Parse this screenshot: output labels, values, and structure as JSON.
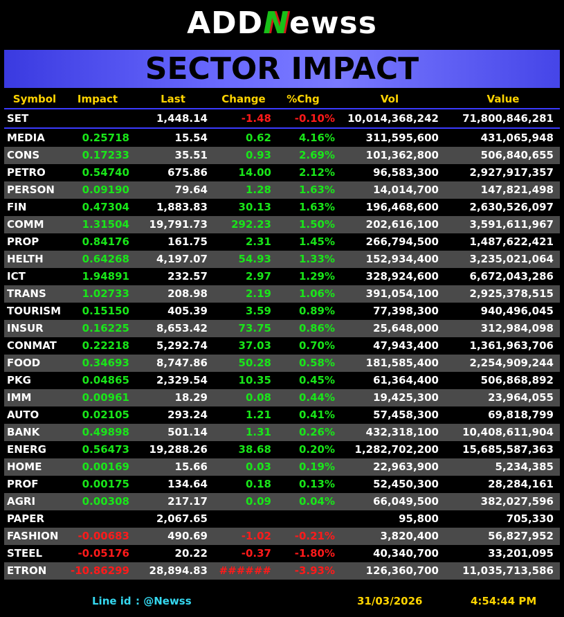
{
  "logo": {
    "left": "ADD",
    "mark": "N",
    "right": "ewss"
  },
  "title": "SECTOR IMPACT",
  "columns": [
    "Symbol",
    "Impact",
    "Last",
    "Change",
    "%Chg",
    "Vol",
    "Value"
  ],
  "index_row": [
    "SET",
    null,
    "1,448.14",
    "-1.48",
    "-0.10%",
    "10,014,368,242",
    "71,800,846,281"
  ],
  "rows": [
    [
      "MEDIA",
      "0.25718",
      "15.54",
      "0.62",
      "4.16%",
      "311,595,600",
      "431,065,948"
    ],
    [
      "CONS",
      "0.17233",
      "35.51",
      "0.93",
      "2.69%",
      "101,362,800",
      "506,840,655"
    ],
    [
      "PETRO",
      "0.54740",
      "675.86",
      "14.00",
      "2.12%",
      "96,583,300",
      "2,927,917,357"
    ],
    [
      "PERSON",
      "0.09190",
      "79.64",
      "1.28",
      "1.63%",
      "14,014,700",
      "147,821,498"
    ],
    [
      "FIN",
      "0.47304",
      "1,883.83",
      "30.13",
      "1.63%",
      "196,468,600",
      "2,630,526,097"
    ],
    [
      "COMM",
      "1.31504",
      "19,791.73",
      "292.23",
      "1.50%",
      "202,616,100",
      "3,591,611,967"
    ],
    [
      "PROP",
      "0.84176",
      "161.75",
      "2.31",
      "1.45%",
      "266,794,500",
      "1,487,622,421"
    ],
    [
      "HELTH",
      "0.64268",
      "4,197.07",
      "54.93",
      "1.33%",
      "152,934,400",
      "3,235,021,064"
    ],
    [
      "ICT",
      "1.94891",
      "232.57",
      "2.97",
      "1.29%",
      "328,924,600",
      "6,672,043,286"
    ],
    [
      "TRANS",
      "1.02733",
      "208.98",
      "2.19",
      "1.06%",
      "391,054,100",
      "2,925,378,515"
    ],
    [
      "TOURISM",
      "0.15150",
      "405.39",
      "3.59",
      "0.89%",
      "77,398,300",
      "940,496,045"
    ],
    [
      "INSUR",
      "0.16225",
      "8,653.42",
      "73.75",
      "0.86%",
      "25,648,000",
      "312,984,098"
    ],
    [
      "CONMAT",
      "0.22218",
      "5,292.74",
      "37.03",
      "0.70%",
      "47,943,400",
      "1,361,963,706"
    ],
    [
      "FOOD",
      "0.34693",
      "8,747.86",
      "50.28",
      "0.58%",
      "181,585,400",
      "2,254,909,244"
    ],
    [
      "PKG",
      "0.04865",
      "2,329.54",
      "10.35",
      "0.45%",
      "61,364,400",
      "506,868,892"
    ],
    [
      "IMM",
      "0.00961",
      "18.29",
      "0.08",
      "0.44%",
      "19,425,300",
      "23,964,055"
    ],
    [
      "AUTO",
      "0.02105",
      "293.24",
      "1.21",
      "0.41%",
      "57,458,300",
      "69,818,799"
    ],
    [
      "BANK",
      "0.49898",
      "501.14",
      "1.31",
      "0.26%",
      "432,318,100",
      "10,408,611,904"
    ],
    [
      "ENERG",
      "0.56473",
      "19,288.26",
      "38.68",
      "0.20%",
      "1,282,702,200",
      "15,685,587,363"
    ],
    [
      "HOME",
      "0.00169",
      "15.66",
      "0.03",
      "0.19%",
      "22,963,900",
      "5,234,385"
    ],
    [
      "PROF",
      "0.00175",
      "134.64",
      "0.18",
      "0.13%",
      "52,450,300",
      "28,284,161"
    ],
    [
      "AGRI",
      "0.00308",
      "217.17",
      "0.09",
      "0.04%",
      "66,049,500",
      "382,027,596"
    ],
    [
      "PAPER",
      null,
      "2,067.65",
      null,
      null,
      "95,800",
      "705,330"
    ],
    [
      "FASHION",
      "-0.00683",
      "490.69",
      "-1.02",
      "-0.21%",
      "3,820,400",
      "56,827,952"
    ],
    [
      "STEEL",
      "-0.05176",
      "20.22",
      "-0.37",
      "-1.80%",
      "40,340,700",
      "33,201,095"
    ],
    [
      "ETRON",
      "-10.86299",
      "28,894.83",
      "######",
      "-3.93%",
      "126,360,700",
      "11,035,713,586"
    ]
  ],
  "footer": {
    "line_label": "Line id",
    "line_id": ": @Newss",
    "date": "31/03/2026",
    "time": "4:54:44 PM"
  }
}
